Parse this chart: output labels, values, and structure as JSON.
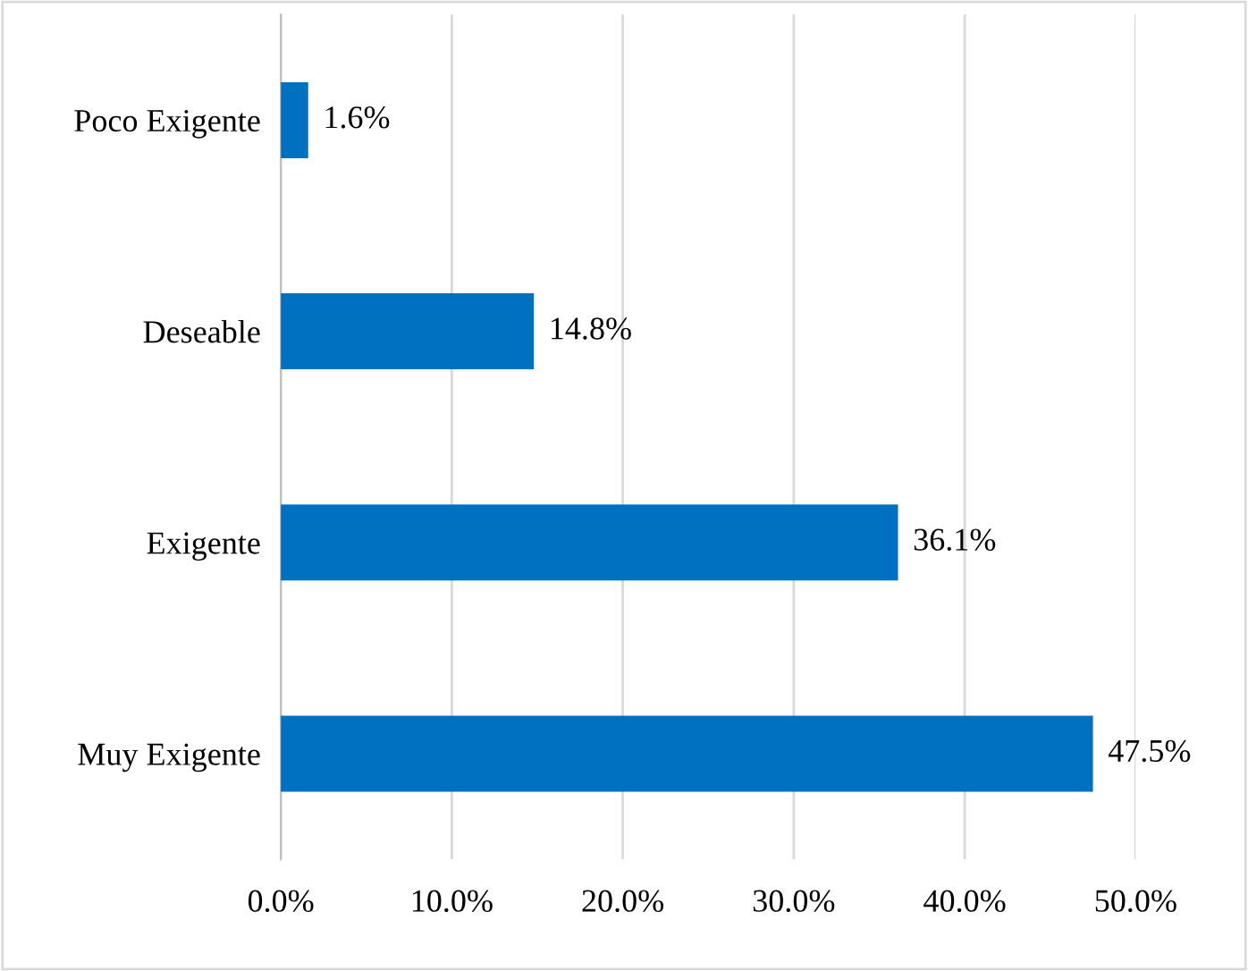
{
  "chart_data": {
    "type": "bar",
    "orientation": "horizontal",
    "categories": [
      "Poco Exigente",
      "Deseable",
      "Exigente",
      "Muy Exigente"
    ],
    "values": [
      1.6,
      14.8,
      36.1,
      47.5
    ],
    "value_labels": [
      "1.6%",
      "14.8%",
      "36.1%",
      "47.5%"
    ],
    "color": "#0070c0",
    "xlim": [
      0,
      50
    ],
    "xticks": [
      {
        "value": 0,
        "label": "0.0%"
      },
      {
        "value": 10,
        "label": "10.0%"
      },
      {
        "value": 20,
        "label": "20.0%"
      },
      {
        "value": 30,
        "label": "30.0%"
      },
      {
        "value": 40,
        "label": "40.0%"
      },
      {
        "value": 50,
        "label": "50.0%"
      }
    ],
    "grid": "x",
    "legend": false
  }
}
